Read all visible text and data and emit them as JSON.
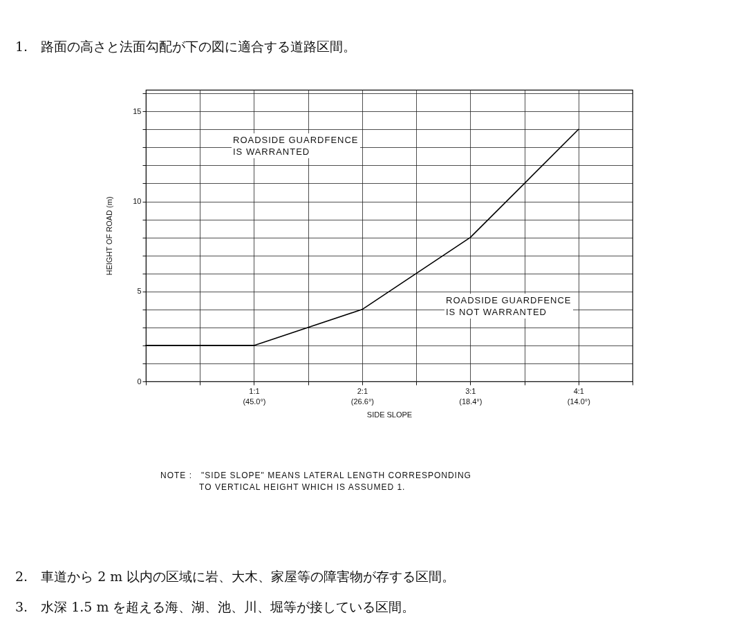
{
  "chart_data": {
    "type": "line",
    "title": "1.　路面の高さと法面勾配が下の図に適合する道路区間。",
    "xlabel": "SIDE SLOPE",
    "ylabel": "HEIGHT OF ROAD (m)",
    "categories": [
      null,
      "1:1\n(45.0°)",
      "2:1\n(26.6°)",
      "3:1\n(18.4°)",
      "4:1\n(14.0°)"
    ],
    "series": [
      {
        "color": "#000000",
        "values": [
          2,
          2,
          4,
          8,
          14
        ]
      }
    ],
    "ylim": [
      0,
      16.2
    ],
    "yticks": [
      0,
      {
        "value": 1,
        "label": null
      },
      {
        "value": 2,
        "label": null
      },
      {
        "value": 3,
        "label": null
      },
      {
        "value": 4,
        "label": null
      },
      5,
      {
        "value": 6,
        "label": null
      },
      {
        "value": 7,
        "label": null
      },
      {
        "value": 8,
        "label": null
      },
      {
        "value": 9,
        "label": null
      },
      10,
      {
        "value": 11,
        "label": null
      },
      {
        "value": 12,
        "label": null
      },
      {
        "value": 13,
        "label": null
      },
      {
        "value": 14,
        "label": null
      },
      15,
      {
        "value": 16,
        "label": null
      }
    ],
    "grid": true,
    "line_style": "solid",
    "annotations": [
      "ROADSIDE GUARDFENCE\nIS WARRANTED",
      "ROADSIDE GUARDFENCE\nIS NOT WARRANTED",
      "NOTE :　\"SIDE SLOPE\" MEANS LATERAL LENGTH CORRESPONDING\n　　　　 TO VERTICAL HEIGHT WHICH IS ASSUMED 1.",
      "2.　車道から 2 m 以内の区域に岩、大木、家屋等の障害物が存する区間。",
      "3.　水深 1.5 m を超える海、湖、池、川、堀等が接している区間。"
    ]
  }
}
